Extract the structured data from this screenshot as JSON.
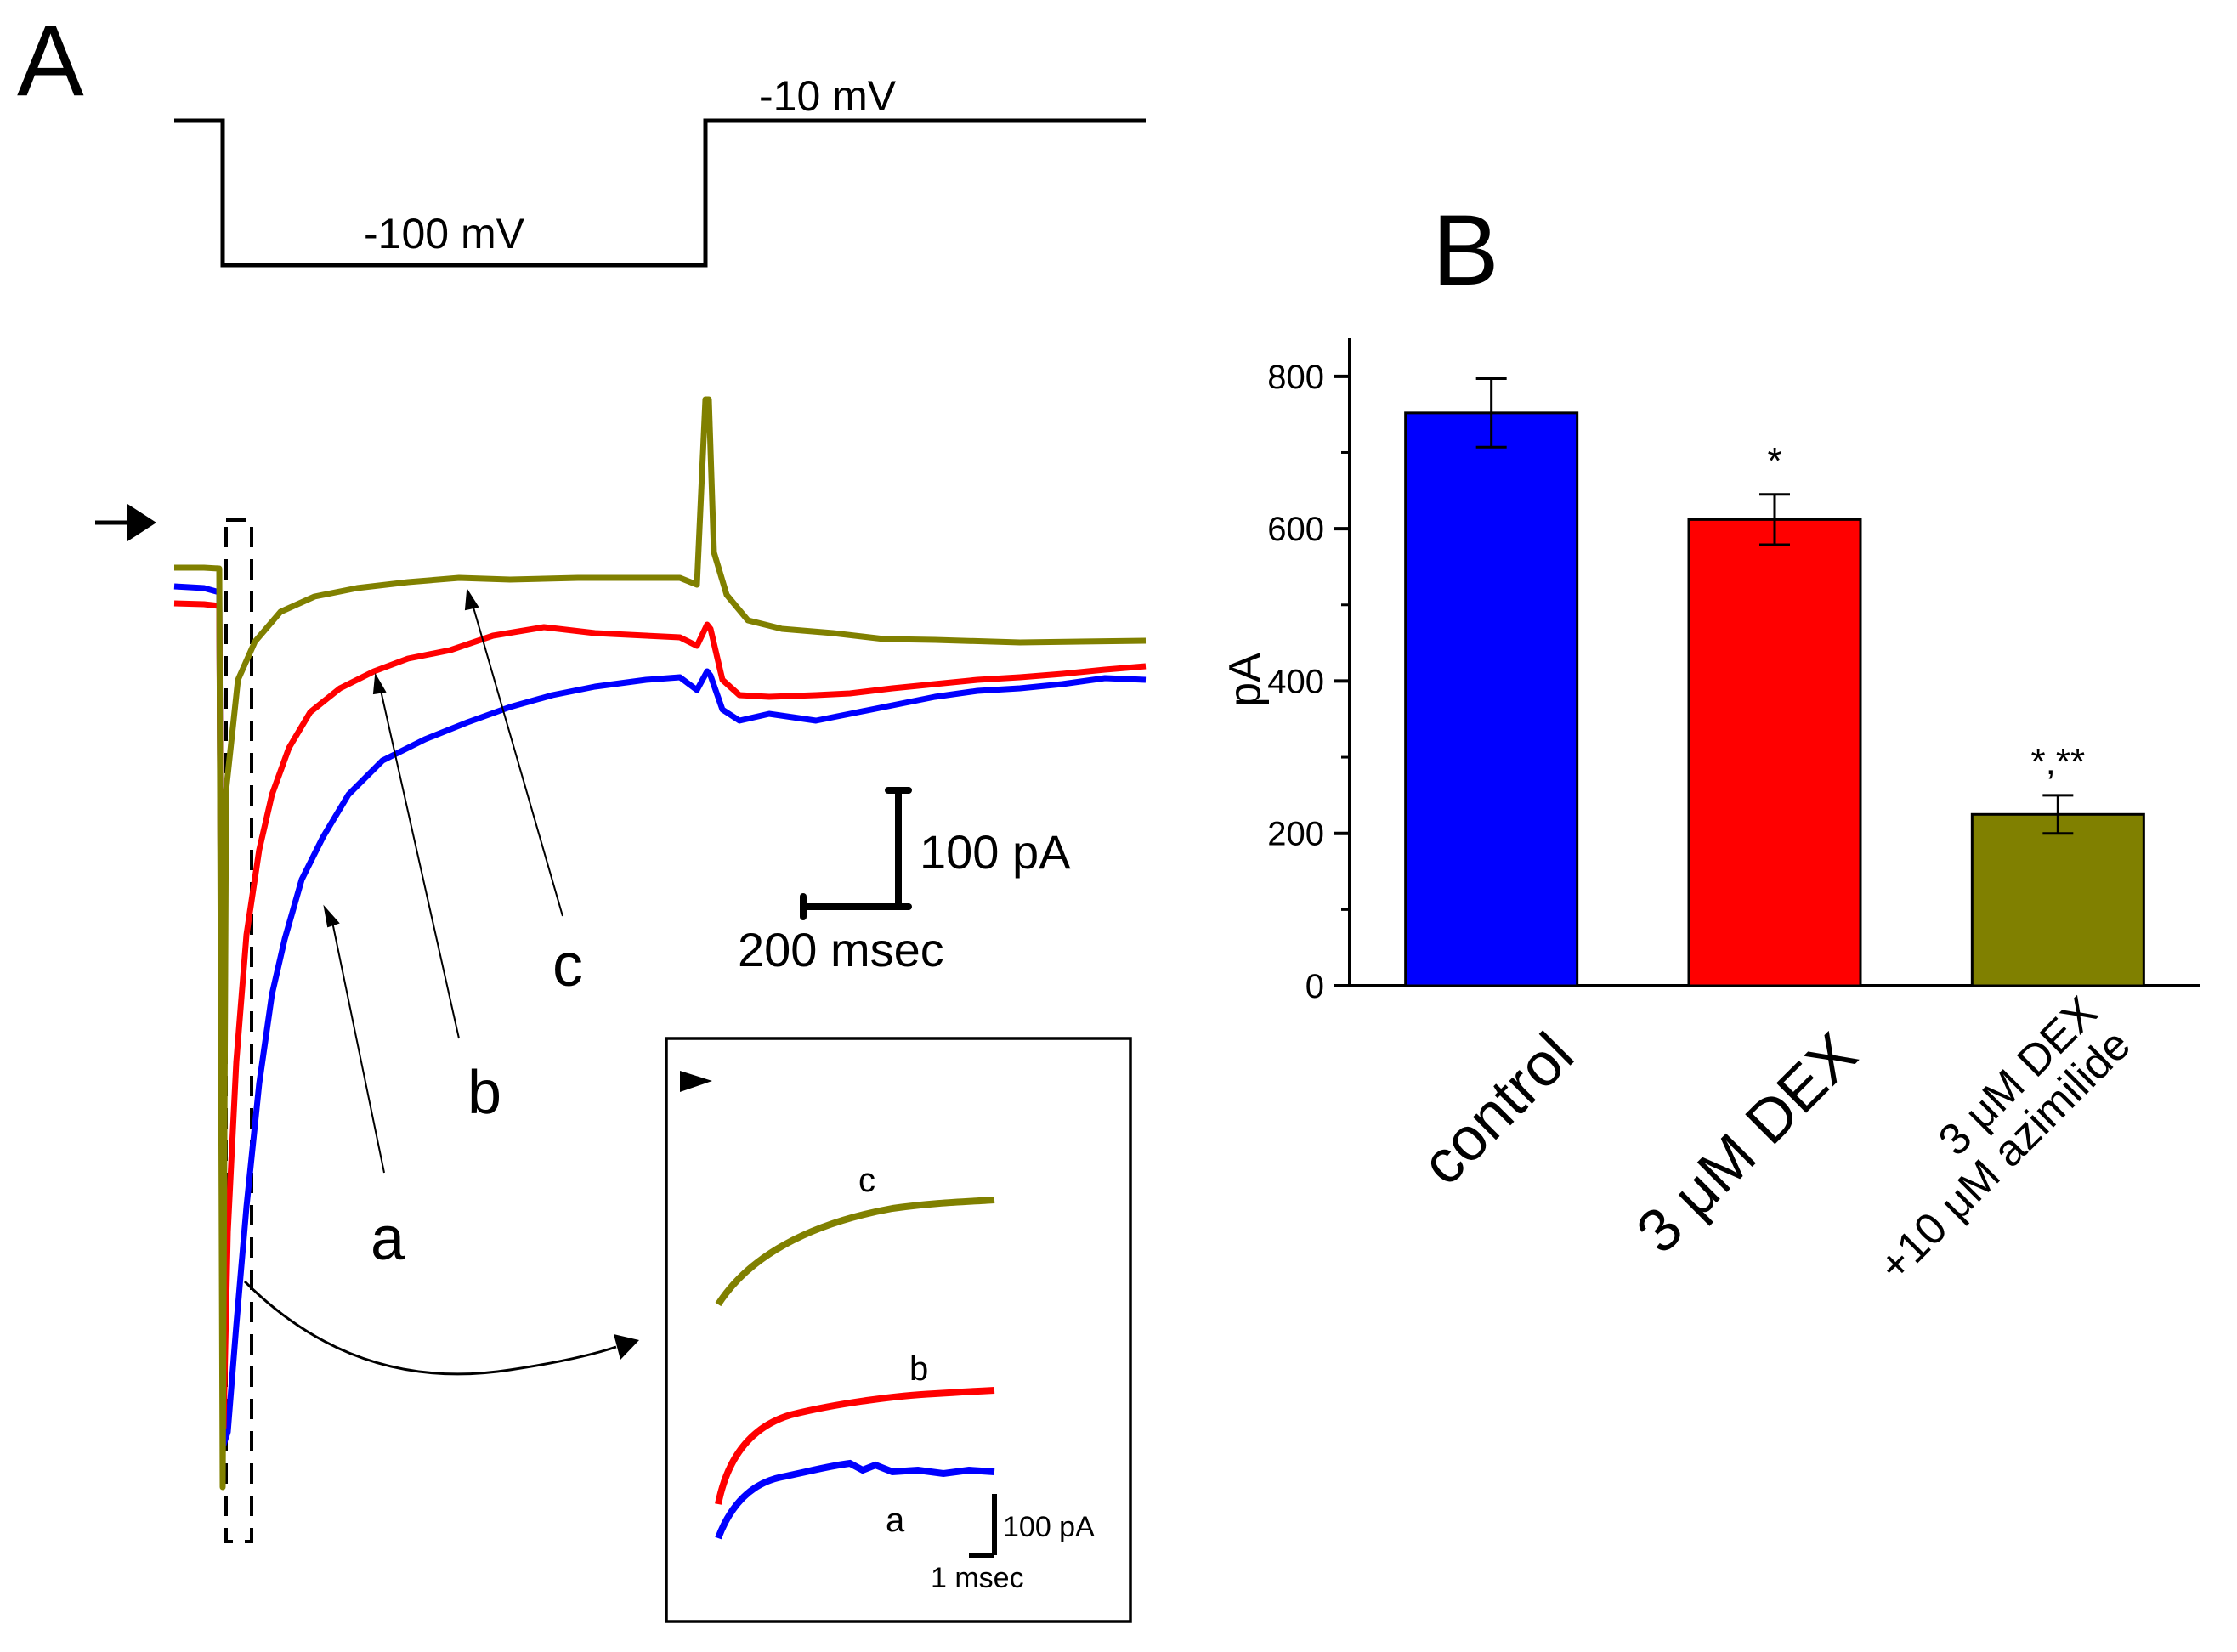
{
  "colors": {
    "control": "#0000ff",
    "dex": "#ff0000",
    "dex_azimilide": "#808000",
    "ink": "#000000"
  },
  "panel_a": {
    "label": "A",
    "protocol": {
      "hold_label": "-10 mV",
      "step_label": "-100 mV"
    },
    "trace_labels": {
      "a": "a",
      "b": "b",
      "c": "c"
    },
    "scale_bar": {
      "current_label": "100 pA",
      "time_label": "200 msec"
    },
    "inset": {
      "trace_labels": {
        "a": "a",
        "b": "b",
        "c": "c"
      },
      "scale_current_label": "100 pA",
      "scale_time_label": "1 msec"
    }
  },
  "chart_data": {
    "type": "bar",
    "panel_label": "B",
    "title": "",
    "categories": [
      "control",
      "3 μM DEX",
      "3 μM DEX +10 μM azimilide"
    ],
    "category_lines": [
      [
        "control"
      ],
      [
        "3 μM DEX"
      ],
      [
        "3 μM DEX",
        "+10 μM azimilide"
      ]
    ],
    "values": [
      752,
      612,
      225
    ],
    "errors": [
      45,
      33,
      25
    ],
    "annotations": [
      "",
      "*",
      "*,**"
    ],
    "xlabel": "",
    "ylabel": "pA",
    "ylim": [
      0,
      850
    ],
    "yticks": [
      0,
      200,
      400,
      600,
      800
    ],
    "grid": false
  }
}
